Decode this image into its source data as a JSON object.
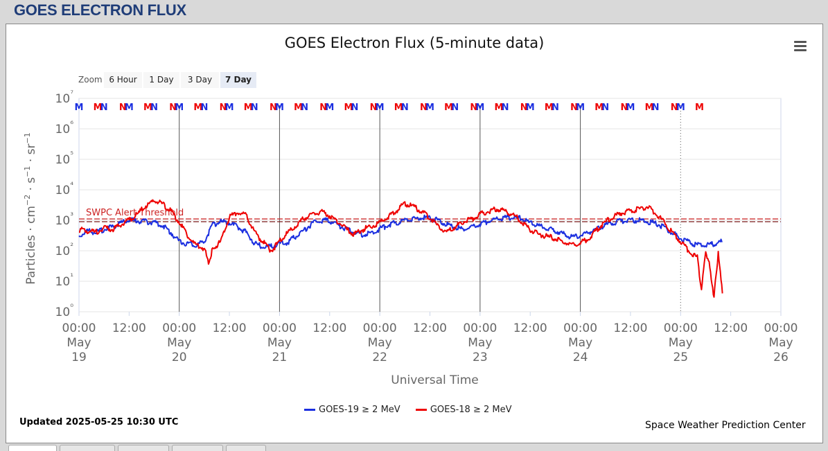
{
  "page": {
    "header": "GOES ELECTRON FLUX"
  },
  "zoom": {
    "label": "Zoom",
    "buttons": [
      "6 Hour",
      "1 Day",
      "3 Day",
      "7 Day"
    ],
    "selected": "7 Day"
  },
  "footer": {
    "updated": "Updated 2025-05-25 10:30 UTC",
    "credit": "Space Weather Prediction Center"
  },
  "colors": {
    "goes19": "#1b2fe0",
    "goes18": "#ee0000",
    "threshold": "#cc2222"
  },
  "chart_data": {
    "type": "line",
    "title": "GOES Electron Flux (5-minute data)",
    "xlabel": "Universal Time",
    "ylabel": "Particles · cm⁻² · s⁻¹ · sr⁻¹",
    "y_scale": "log",
    "ylim_exp": [
      0,
      7
    ],
    "y_ticks": [
      "10⁰",
      "10¹",
      "10²",
      "10³",
      "10⁴",
      "10⁵",
      "10⁶",
      "10⁷"
    ],
    "xlim_hours": [
      0,
      168
    ],
    "x_ticks": [
      {
        "time": "00:00",
        "date": "May",
        "day": "19"
      },
      {
        "time": "12:00"
      },
      {
        "time": "00:00",
        "date": "May",
        "day": "20"
      },
      {
        "time": "12:00"
      },
      {
        "time": "00:00",
        "date": "May",
        "day": "21"
      },
      {
        "time": "12:00"
      },
      {
        "time": "00:00",
        "date": "May",
        "day": "22"
      },
      {
        "time": "12:00"
      },
      {
        "time": "00:00",
        "date": "May",
        "day": "23"
      },
      {
        "time": "12:00"
      },
      {
        "time": "00:00",
        "date": "May",
        "day": "24"
      },
      {
        "time": "12:00"
      },
      {
        "time": "00:00",
        "date": "May",
        "day": "25"
      },
      {
        "time": "12:00"
      },
      {
        "time": "00:00",
        "date": "May",
        "day": "26"
      }
    ],
    "threshold": {
      "label": "SWPC Alert Threshold",
      "value": 1000
    },
    "mn_markers": [
      {
        "hour": 0.0,
        "letter": "M",
        "series": "goes19"
      },
      {
        "hour": 4.5,
        "letter": "M",
        "series": "goes18"
      },
      {
        "hour": 6.0,
        "letter": "N",
        "series": "goes19"
      },
      {
        "hour": 10.5,
        "letter": "N",
        "series": "goes18"
      },
      {
        "hour": 12.0,
        "letter": "M",
        "series": "goes19"
      },
      {
        "hour": 16.5,
        "letter": "M",
        "series": "goes18"
      },
      {
        "hour": 18.0,
        "letter": "N",
        "series": "goes19"
      },
      {
        "hour": 22.5,
        "letter": "N",
        "series": "goes18"
      },
      {
        "hour": 24.0,
        "letter": "M",
        "series": "goes19"
      },
      {
        "hour": 28.5,
        "letter": "M",
        "series": "goes18"
      },
      {
        "hour": 30.0,
        "letter": "N",
        "series": "goes19"
      },
      {
        "hour": 34.5,
        "letter": "N",
        "series": "goes18"
      },
      {
        "hour": 36.0,
        "letter": "M",
        "series": "goes19"
      },
      {
        "hour": 40.5,
        "letter": "M",
        "series": "goes18"
      },
      {
        "hour": 42.0,
        "letter": "N",
        "series": "goes19"
      },
      {
        "hour": 46.5,
        "letter": "N",
        "series": "goes18"
      },
      {
        "hour": 48.0,
        "letter": "M",
        "series": "goes19"
      },
      {
        "hour": 52.5,
        "letter": "M",
        "series": "goes18"
      },
      {
        "hour": 54.0,
        "letter": "N",
        "series": "goes19"
      },
      {
        "hour": 58.5,
        "letter": "N",
        "series": "goes18"
      },
      {
        "hour": 60.0,
        "letter": "M",
        "series": "goes19"
      },
      {
        "hour": 64.5,
        "letter": "M",
        "series": "goes18"
      },
      {
        "hour": 66.0,
        "letter": "N",
        "series": "goes19"
      },
      {
        "hour": 70.5,
        "letter": "N",
        "series": "goes18"
      },
      {
        "hour": 72.0,
        "letter": "M",
        "series": "goes19"
      },
      {
        "hour": 76.5,
        "letter": "M",
        "series": "goes18"
      },
      {
        "hour": 78.0,
        "letter": "N",
        "series": "goes19"
      },
      {
        "hour": 82.5,
        "letter": "N",
        "series": "goes18"
      },
      {
        "hour": 84.0,
        "letter": "M",
        "series": "goes19"
      },
      {
        "hour": 88.5,
        "letter": "M",
        "series": "goes18"
      },
      {
        "hour": 90.0,
        "letter": "N",
        "series": "goes19"
      },
      {
        "hour": 94.5,
        "letter": "N",
        "series": "goes18"
      },
      {
        "hour": 96.0,
        "letter": "M",
        "series": "goes19"
      },
      {
        "hour": 100.5,
        "letter": "M",
        "series": "goes18"
      },
      {
        "hour": 102.0,
        "letter": "N",
        "series": "goes19"
      },
      {
        "hour": 106.5,
        "letter": "N",
        "series": "goes18"
      },
      {
        "hour": 108.0,
        "letter": "M",
        "series": "goes19"
      },
      {
        "hour": 112.5,
        "letter": "M",
        "series": "goes18"
      },
      {
        "hour": 114.0,
        "letter": "N",
        "series": "goes19"
      },
      {
        "hour": 118.5,
        "letter": "N",
        "series": "goes18"
      },
      {
        "hour": 120.0,
        "letter": "M",
        "series": "goes19"
      },
      {
        "hour": 124.5,
        "letter": "M",
        "series": "goes18"
      },
      {
        "hour": 126.0,
        "letter": "N",
        "series": "goes19"
      },
      {
        "hour": 130.5,
        "letter": "N",
        "series": "goes18"
      },
      {
        "hour": 132.0,
        "letter": "M",
        "series": "goes19"
      },
      {
        "hour": 136.5,
        "letter": "M",
        "series": "goes18"
      },
      {
        "hour": 138.0,
        "letter": "N",
        "series": "goes19"
      },
      {
        "hour": 142.5,
        "letter": "N",
        "series": "goes18"
      },
      {
        "hour": 144.0,
        "letter": "M",
        "series": "goes19"
      },
      {
        "hour": 148.5,
        "letter": "M",
        "series": "goes18"
      }
    ],
    "series": [
      {
        "name": "GOES-19 ≥ 2 MeV",
        "color": "#1b2fe0",
        "x_hours": [
          0,
          2,
          4,
          6,
          8,
          10,
          12,
          14,
          16,
          18,
          20,
          22,
          24,
          26,
          28,
          30,
          32,
          34,
          36,
          38,
          40,
          42,
          44,
          46,
          48,
          50,
          52,
          54,
          56,
          58,
          60,
          62,
          64,
          66,
          68,
          70,
          72,
          74,
          76,
          78,
          80,
          82,
          84,
          86,
          88,
          90,
          92,
          94,
          96,
          98,
          100,
          102,
          104,
          106,
          108,
          110,
          112,
          114,
          116,
          118,
          120,
          122,
          124,
          126,
          128,
          130,
          132,
          134,
          136,
          138,
          140,
          142,
          144,
          146,
          148,
          150,
          152,
          154
        ],
        "values": [
          300,
          450,
          400,
          500,
          600,
          800,
          1000,
          950,
          900,
          850,
          700,
          400,
          200,
          170,
          150,
          200,
          700,
          900,
          800,
          600,
          400,
          180,
          130,
          140,
          170,
          190,
          300,
          500,
          800,
          1000,
          950,
          700,
          500,
          420,
          330,
          380,
          520,
          700,
          850,
          1000,
          1100,
          1200,
          1200,
          1000,
          750,
          600,
          500,
          600,
          750,
          900,
          1100,
          1200,
          1250,
          1150,
          800,
          650,
          550,
          450,
          350,
          280,
          320,
          400,
          500,
          700,
          850,
          950,
          1000,
          1000,
          900,
          800,
          600,
          400,
          250,
          190,
          150,
          160,
          170,
          200
        ]
      },
      {
        "name": "GOES-18 ≥ 2 MeV",
        "color": "#ee0000",
        "x_hours": [
          0,
          2,
          4,
          6,
          8,
          10,
          12,
          14,
          16,
          18,
          20,
          22,
          24,
          26,
          28,
          30,
          31,
          32,
          34,
          36,
          38,
          40,
          42,
          44,
          46,
          48,
          50,
          52,
          54,
          56,
          58,
          60,
          62,
          64,
          66,
          68,
          70,
          72,
          74,
          76,
          78,
          80,
          82,
          84,
          86,
          88,
          90,
          92,
          94,
          96,
          98,
          100,
          102,
          104,
          106,
          108,
          110,
          112,
          114,
          116,
          118,
          120,
          122,
          124,
          126,
          128,
          130,
          132,
          134,
          136,
          138,
          140,
          142,
          144,
          146,
          148,
          149,
          150,
          151,
          152,
          153,
          154
        ],
        "values": [
          500,
          450,
          400,
          550,
          500,
          700,
          1000,
          1600,
          3000,
          4300,
          3500,
          2000,
          900,
          300,
          150,
          120,
          40,
          120,
          200,
          1300,
          1800,
          1500,
          400,
          200,
          100,
          200,
          400,
          700,
          1200,
          1500,
          2000,
          1400,
          900,
          500,
          350,
          500,
          650,
          800,
          1300,
          2100,
          3500,
          2800,
          2000,
          1200,
          600,
          400,
          600,
          900,
          1100,
          1600,
          2000,
          2300,
          2000,
          1500,
          900,
          500,
          350,
          300,
          250,
          200,
          150,
          180,
          250,
          500,
          900,
          1300,
          1800,
          2000,
          2300,
          2800,
          1700,
          900,
          400,
          200,
          100,
          60,
          5,
          100,
          30,
          3,
          80,
          4
        ]
      }
    ]
  }
}
